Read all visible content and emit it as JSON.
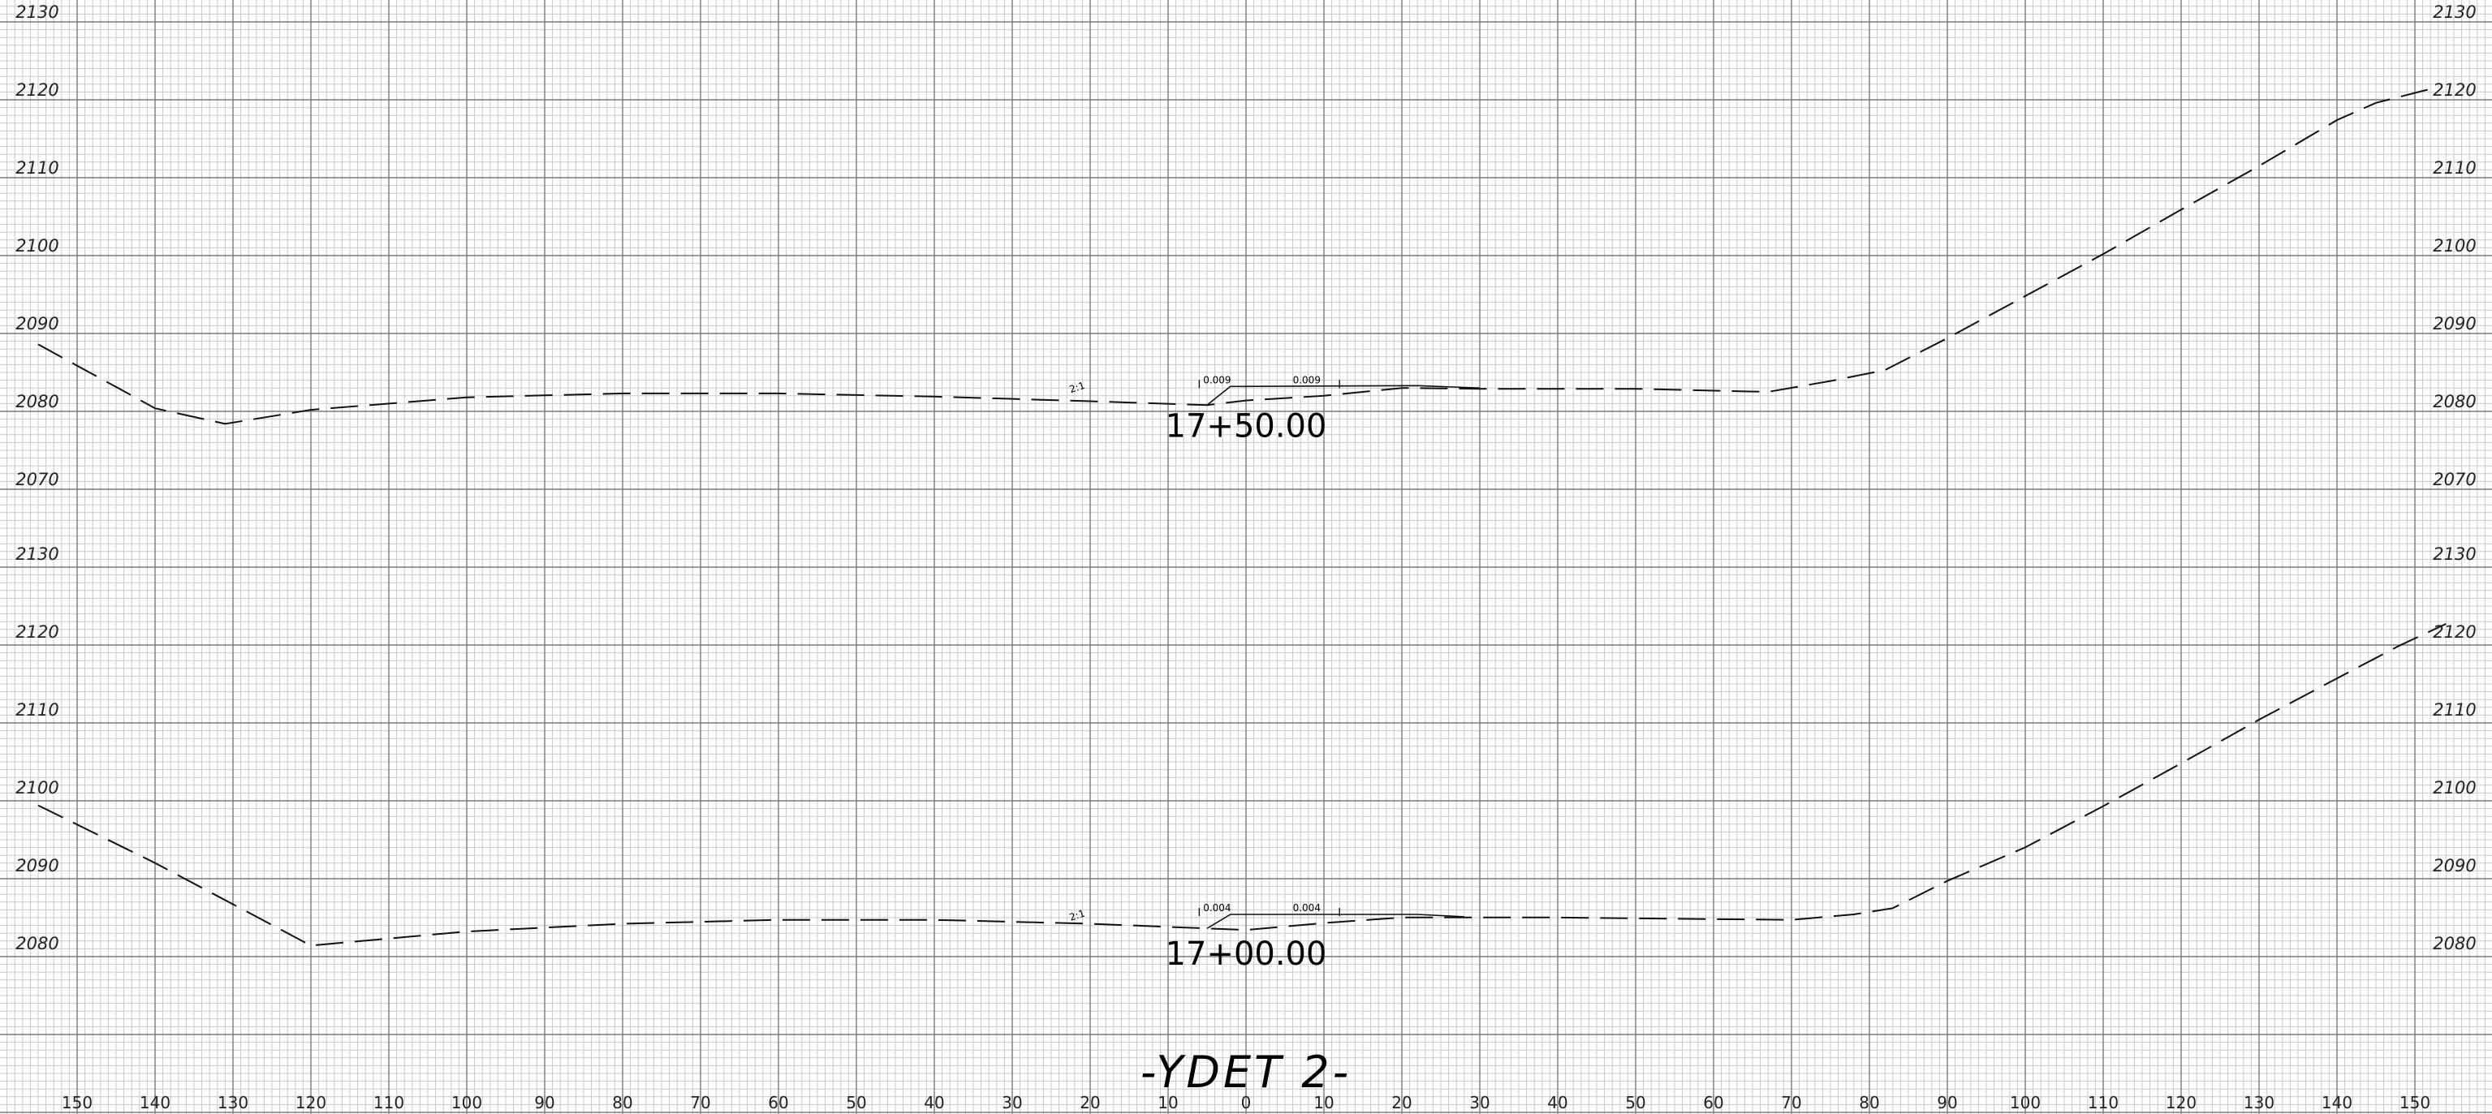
{
  "title": "-YDET 2-",
  "x_axis": {
    "tick_labels": [
      "150",
      "140",
      "130",
      "120",
      "110",
      "100",
      "90",
      "80",
      "70",
      "60",
      "50",
      "40",
      "30",
      "20",
      "10",
      "0",
      "10",
      "20",
      "30",
      "40",
      "50",
      "60",
      "70",
      "80",
      "90",
      "100",
      "110",
      "120",
      "130",
      "140",
      "150"
    ],
    "offset_min": -150,
    "offset_max": 150
  },
  "sections": [
    {
      "station": "17+50.00",
      "elev_labels": [
        "2130",
        "2120",
        "2110",
        "2100",
        "2090",
        "2080",
        "2070"
      ],
      "elev_min": 2070,
      "elev_max": 2130,
      "side_slope": "2:1",
      "cross_slopes": [
        "0.009",
        "0.009"
      ],
      "ground_profile": [
        [
          -155,
          2088.6
        ],
        [
          -140,
          2080.4
        ],
        [
          -131,
          2078.4
        ],
        [
          -120,
          2080.2
        ],
        [
          -100,
          2081.8
        ],
        [
          -80,
          2082.3
        ],
        [
          -60,
          2082.3
        ],
        [
          -40,
          2081.9
        ],
        [
          -20,
          2081.3
        ],
        [
          -5,
          2080.8
        ],
        [
          0,
          2081.4
        ],
        [
          10,
          2082.0
        ],
        [
          20,
          2083.0
        ],
        [
          30,
          2082.9
        ],
        [
          50,
          2082.9
        ],
        [
          67,
          2082.5
        ],
        [
          75,
          2083.9
        ],
        [
          82,
          2085.3
        ],
        [
          90,
          2089.4
        ],
        [
          100,
          2094.8
        ],
        [
          110,
          2100.2
        ],
        [
          120,
          2105.9
        ],
        [
          130,
          2111.5
        ],
        [
          140,
          2117.4
        ],
        [
          145,
          2119.6
        ],
        [
          152,
          2121.4
        ]
      ],
      "design_profile": [
        [
          -5,
          2080.8
        ],
        [
          -2,
          2083.2
        ],
        [
          22,
          2083.3
        ],
        [
          30,
          2083.0
        ]
      ]
    },
    {
      "station": "17+00.00",
      "elev_labels": [
        "2130",
        "2120",
        "2110",
        "2100",
        "2090",
        "2080"
      ],
      "elev_min": 2080,
      "elev_max": 2130,
      "side_slope": "2:1",
      "cross_slopes": [
        "0.004",
        "0.004"
      ],
      "ground_profile": [
        [
          -155,
          2099.0
        ],
        [
          -140,
          2091.6
        ],
        [
          -120,
          2081.0
        ],
        [
          -100,
          2082.8
        ],
        [
          -80,
          2083.8
        ],
        [
          -60,
          2084.3
        ],
        [
          -40,
          2084.3
        ],
        [
          -20,
          2083.8
        ],
        [
          -5,
          2083.2
        ],
        [
          0,
          2083.0
        ],
        [
          10,
          2083.9
        ],
        [
          20,
          2084.6
        ],
        [
          40,
          2084.6
        ],
        [
          60,
          2084.4
        ],
        [
          70,
          2084.3
        ],
        [
          78,
          2085.0
        ],
        [
          83,
          2085.8
        ],
        [
          90,
          2089.3
        ],
        [
          100,
          2093.6
        ],
        [
          110,
          2098.9
        ],
        [
          120,
          2104.4
        ],
        [
          130,
          2110.0
        ],
        [
          140,
          2115.3
        ],
        [
          148,
          2119.5
        ],
        [
          154,
          2122.3
        ]
      ],
      "design_profile": [
        [
          -5,
          2083.2
        ],
        [
          -2,
          2085.0
        ],
        [
          22,
          2085.0
        ],
        [
          28,
          2084.7
        ]
      ]
    }
  ]
}
